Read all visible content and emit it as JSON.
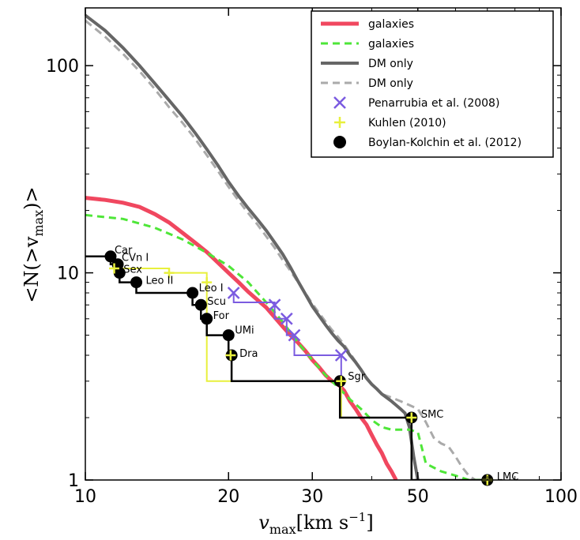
{
  "chart_data": {
    "type": "line",
    "xlabel": "v_max[km s^-1]",
    "xlabel_main": "v",
    "xlabel_sub": "max",
    "xlabel_units": "[km s",
    "xlabel_exp": "−1",
    "xlabel_close": "]",
    "ylabel": "<N(>v_max)>",
    "ylabel_main": "<N(>v",
    "ylabel_sub": "max",
    "ylabel_close": ")>",
    "xscale": "log",
    "yscale": "log",
    "xlim": [
      10,
      100
    ],
    "ylim": [
      1,
      190
    ],
    "x_ticks": [
      10,
      20,
      30,
      50,
      100
    ],
    "x_tick_labels": [
      "10",
      "20",
      "30",
      "50",
      "100"
    ],
    "y_ticks": [
      1,
      10,
      100
    ],
    "y_tick_labels": [
      "1",
      "10",
      "100"
    ],
    "grid": false,
    "legend_position": "top-right",
    "series": [
      {
        "name": "galaxies",
        "style": "solid",
        "color": "#f0475f",
        "x": [
          10,
          11,
          12,
          13,
          14,
          15,
          16,
          17,
          18,
          19,
          20,
          21,
          22,
          23,
          24,
          25,
          26,
          27,
          28,
          29,
          30,
          31,
          32,
          33,
          34,
          35,
          36,
          37,
          38,
          39,
          40,
          41,
          42,
          43,
          44,
          45
        ],
        "y": [
          23,
          22.5,
          21.8,
          20.8,
          19.2,
          17.5,
          15.6,
          14,
          12.6,
          11.2,
          10,
          9,
          8.1,
          7.4,
          6.8,
          6.1,
          5.5,
          5,
          4.6,
          4.2,
          3.8,
          3.5,
          3.2,
          3,
          2.9,
          2.7,
          2.4,
          2.2,
          2,
          1.85,
          1.65,
          1.48,
          1.35,
          1.2,
          1.1,
          1
        ]
      },
      {
        "name": "galaxies",
        "style": "dashed",
        "color": "#4ee638",
        "x": [
          10,
          12,
          14,
          16,
          18,
          20,
          22,
          24,
          26,
          28,
          30,
          32,
          34,
          36,
          38,
          40,
          42,
          44,
          46,
          48,
          50,
          52,
          56,
          60,
          64,
          68
        ],
        "y": [
          19,
          18.2,
          16.5,
          14.5,
          12.5,
          10.8,
          9,
          7.2,
          5.8,
          4.6,
          3.8,
          3.2,
          2.8,
          2.45,
          2.2,
          1.95,
          1.8,
          1.75,
          1.75,
          1.75,
          1.7,
          1.2,
          1.1,
          1.05,
          1.0,
          1.0
        ]
      },
      {
        "name": "DM only",
        "style": "solid",
        "color": "#666666",
        "x": [
          10,
          11,
          12,
          13,
          14,
          15,
          16,
          17,
          18,
          19,
          20,
          21,
          22,
          23,
          24,
          25,
          26,
          27,
          28,
          29,
          30,
          31,
          32,
          33,
          34,
          35,
          36,
          37,
          38,
          39,
          40,
          41,
          42,
          43,
          44,
          45,
          46,
          47,
          48,
          49,
          50
        ],
        "y": [
          175,
          148,
          122,
          100,
          82,
          68,
          57,
          47.5,
          39.5,
          33,
          27.5,
          23.5,
          20.5,
          18.1,
          16,
          14,
          12.3,
          10.6,
          9.1,
          7.9,
          6.9,
          6.2,
          5.6,
          5.1,
          4.7,
          4.4,
          4.0,
          3.7,
          3.4,
          3.1,
          2.9,
          2.75,
          2.6,
          2.5,
          2.4,
          2.3,
          2.2,
          2.1,
          1.8,
          1.3,
          1.0
        ]
      },
      {
        "name": "DM only",
        "style": "dashed",
        "color": "#aaaaaa",
        "x": [
          10,
          11,
          12,
          13,
          14,
          15,
          16,
          17,
          18,
          19,
          20,
          21,
          22,
          23,
          24,
          25,
          26,
          27,
          28,
          29,
          30,
          31,
          32,
          33,
          34,
          35,
          36,
          38,
          40,
          42,
          44,
          46,
          48,
          50,
          52,
          54,
          56,
          58,
          60,
          62,
          64,
          66
        ],
        "y": [
          165,
          138,
          114,
          94,
          77,
          63,
          53,
          44.5,
          37,
          31,
          26,
          22.3,
          19.4,
          17.1,
          15,
          13.2,
          11.5,
          10.2,
          9,
          8,
          7.1,
          6.4,
          5.8,
          5.3,
          4.9,
          4.5,
          4.1,
          3.4,
          2.9,
          2.6,
          2.5,
          2.4,
          2.3,
          2.2,
          1.9,
          1.6,
          1.5,
          1.45,
          1.3,
          1.15,
          1.05,
          1.0
        ]
      },
      {
        "name": "Penarrubia et al. (2008)",
        "style": "step-x",
        "color": "#7b5be0",
        "x": [
          20.5,
          25,
          26.5,
          27.5,
          34.5
        ],
        "y": [
          8,
          7,
          6,
          5,
          4
        ]
      },
      {
        "name": "Kuhlen (2010)",
        "style": "step-plus",
        "color": "#e8f03c",
        "x": [
          11.5,
          15,
          18,
          20.2,
          34.5,
          48.5,
          70
        ],
        "y": [
          10.5,
          10,
          9,
          4,
          3,
          2,
          1
        ]
      },
      {
        "name": "Boylan-Kolchin et al. (2012)",
        "style": "step-circle",
        "color": "#000000",
        "x": [
          11.3,
          11.7,
          11.8,
          12.8,
          16.8,
          17.5,
          18,
          20,
          20.3,
          34.3,
          48.5,
          70
        ],
        "y": [
          12,
          11,
          10,
          9,
          8,
          7,
          6,
          5,
          4,
          3,
          2,
          1
        ],
        "labels": [
          "Car",
          "CVn I",
          "Sex",
          "Leo II",
          "Leo I",
          "Scu",
          "For",
          "UMi",
          "Dra",
          "Sgr",
          "SMC",
          "LMC"
        ]
      }
    ]
  },
  "colors": {
    "galaxies_solid": "#f0475f",
    "galaxies_dashed": "#4ee638",
    "dm_solid": "#666666",
    "dm_dashed": "#aaaaaa",
    "penarrubia": "#7b5be0",
    "kuhlen": "#e8f03c",
    "boylan": "#000000"
  }
}
